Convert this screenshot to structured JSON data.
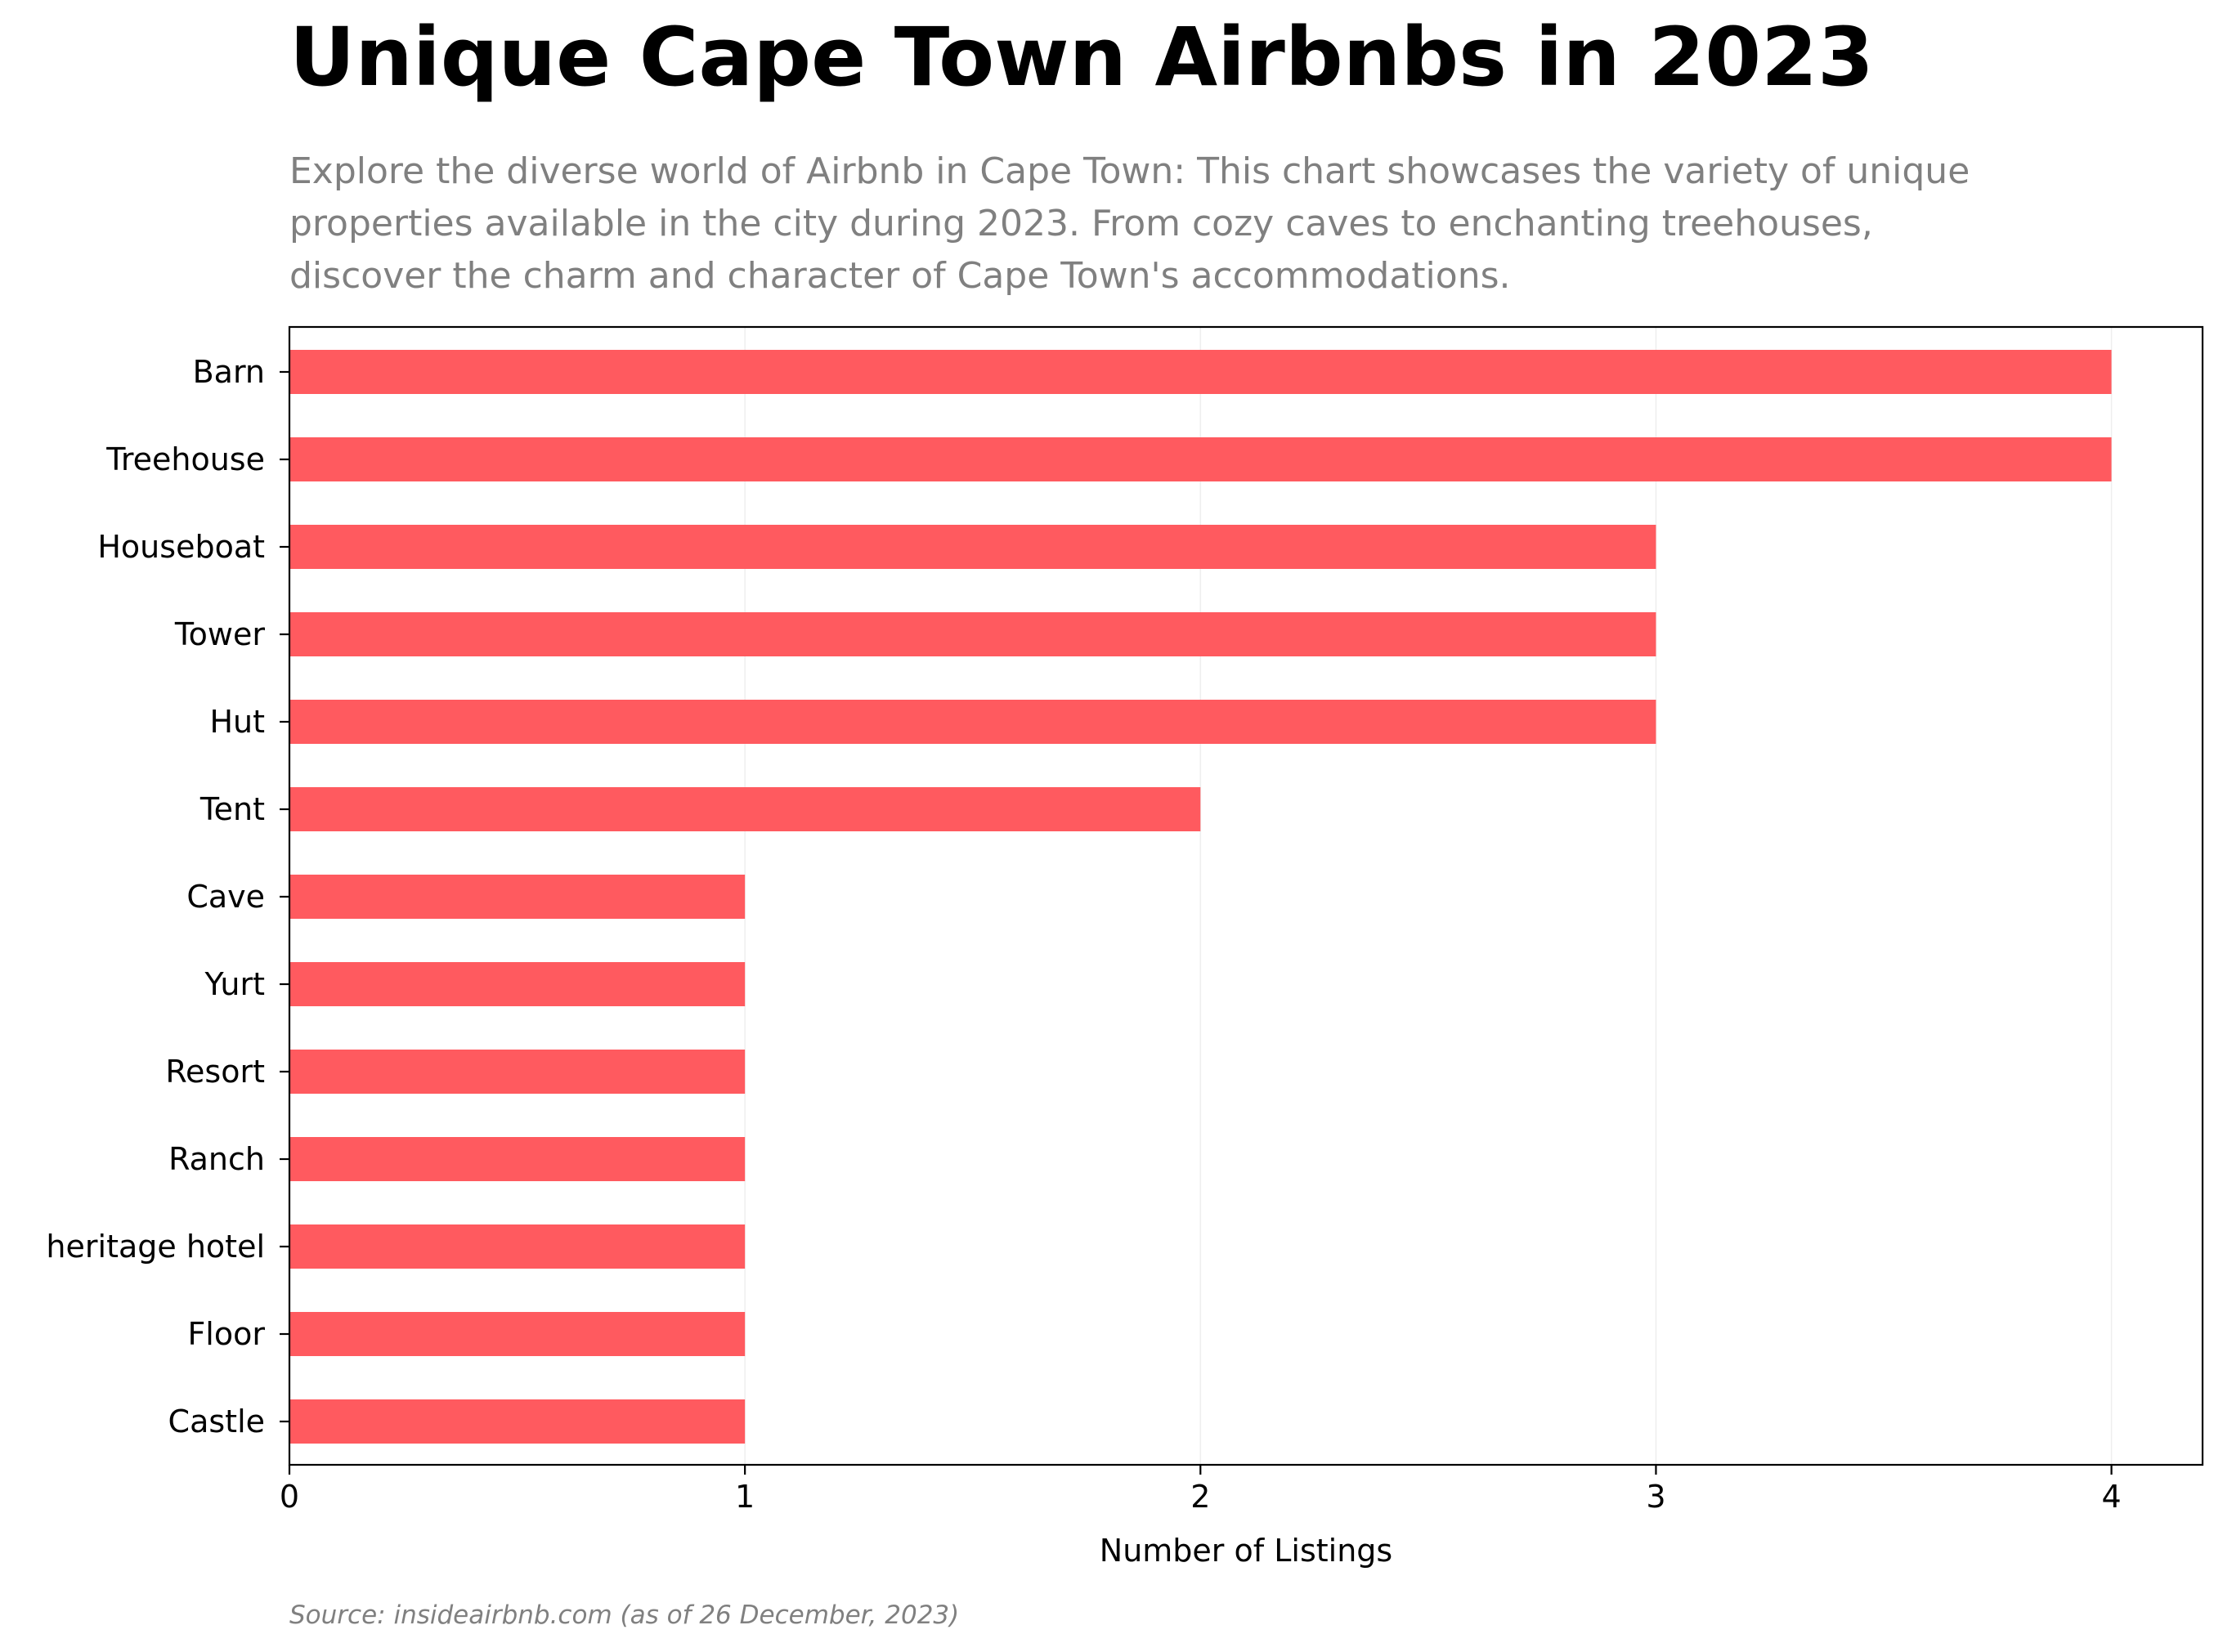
{
  "header": {
    "title": "Unique Cape Town Airbnbs in 2023",
    "subtitle_lines": [
      "Explore the diverse world of Airbnb in Cape Town: This chart showcases the variety of unique",
      "properties available in the city during 2023. From cozy caves to enchanting treehouses,",
      "discover the charm and character of Cape Town's accommodations."
    ]
  },
  "footer": {
    "source": "Source: insideairbnb.com (as of 26 December, 2023)"
  },
  "colors": {
    "bar": "#ff5a5f",
    "axis": "#000000",
    "grid": "#eeeeee",
    "text": "#000000"
  },
  "chart_data": {
    "type": "bar",
    "orientation": "horizontal",
    "title": "Unique Cape Town Airbnbs in 2023",
    "xlabel": "Number of Listings",
    "ylabel": "",
    "categories": [
      "Barn",
      "Treehouse",
      "Houseboat",
      "Tower",
      "Hut",
      "Tent",
      "Cave",
      "Yurt",
      "Resort",
      "Ranch",
      "heritage hotel",
      "Floor",
      "Castle"
    ],
    "values": [
      4,
      4,
      3,
      3,
      3,
      2,
      1,
      1,
      1,
      1,
      1,
      1,
      1
    ],
    "xlim": [
      0,
      4.2
    ],
    "xticks": [
      0,
      1,
      2,
      3,
      4
    ],
    "grid": "vertical, faint",
    "legend": "none"
  }
}
